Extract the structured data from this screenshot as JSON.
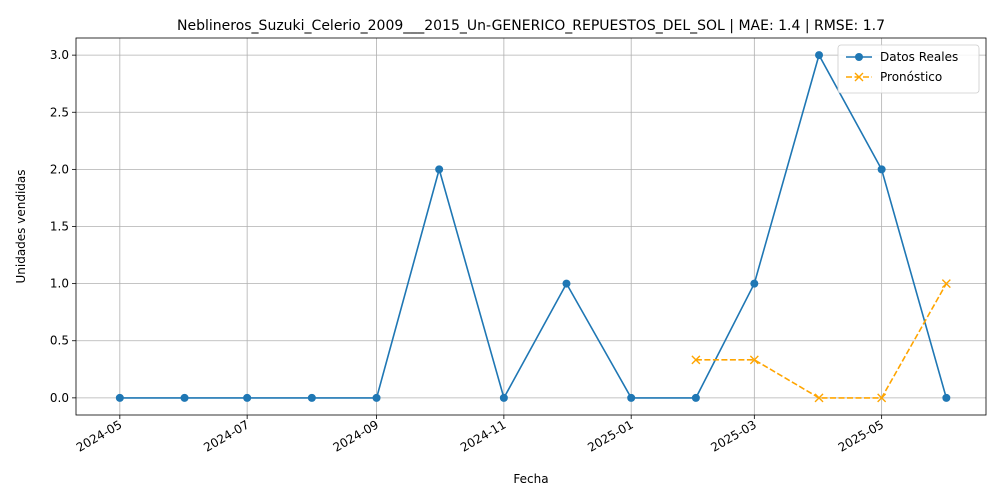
{
  "chart_data": {
    "type": "line",
    "title": "Neblineros_Suzuki_Celerio_2009___2015_Un-GENERICO_REPUESTOS_DEL_SOL | MAE: 1.4 | RMSE: 1.7",
    "xlabel": "Fecha",
    "ylabel": "Unidades vendidas",
    "x_range": [
      "2024-04-10",
      "2025-06-20"
    ],
    "ylim": [
      -0.15,
      3.15
    ],
    "x_ticks": [
      "2024-05",
      "2024-07",
      "2024-09",
      "2024-11",
      "2025-01",
      "2025-03",
      "2025-05"
    ],
    "x_tick_dates": [
      "2024-05-01",
      "2024-07-01",
      "2024-09-01",
      "2024-11-01",
      "2025-01-01",
      "2025-03-01",
      "2025-05-01"
    ],
    "y_ticks": [
      "0.0",
      "0.5",
      "1.0",
      "1.5",
      "2.0",
      "2.5",
      "3.0"
    ],
    "y_tick_values": [
      0,
      0.5,
      1.0,
      1.5,
      2.0,
      2.5,
      3.0
    ],
    "grid": true,
    "legend": "top-right",
    "series": [
      {
        "name": "Datos Reales",
        "color": "#1f77b4",
        "marker": "circle",
        "linestyle": "solid",
        "x": [
          "2024-05-01",
          "2024-06-01",
          "2024-07-01",
          "2024-08-01",
          "2024-09-01",
          "2024-10-01",
          "2024-11-01",
          "2024-12-01",
          "2025-01-01",
          "2025-02-01",
          "2025-03-01",
          "2025-04-01",
          "2025-05-01",
          "2025-06-01"
        ],
        "values": [
          0,
          0,
          0,
          0,
          0,
          2,
          0,
          1,
          0,
          0,
          1,
          3,
          2,
          0
        ]
      },
      {
        "name": "Pronóstico",
        "color": "#ffa500",
        "marker": "x",
        "linestyle": "dashed",
        "x": [
          "2025-02-01",
          "2025-03-01",
          "2025-04-01",
          "2025-05-01",
          "2025-06-01"
        ],
        "values": [
          0.333,
          0.333,
          0,
          0,
          1
        ]
      }
    ]
  }
}
